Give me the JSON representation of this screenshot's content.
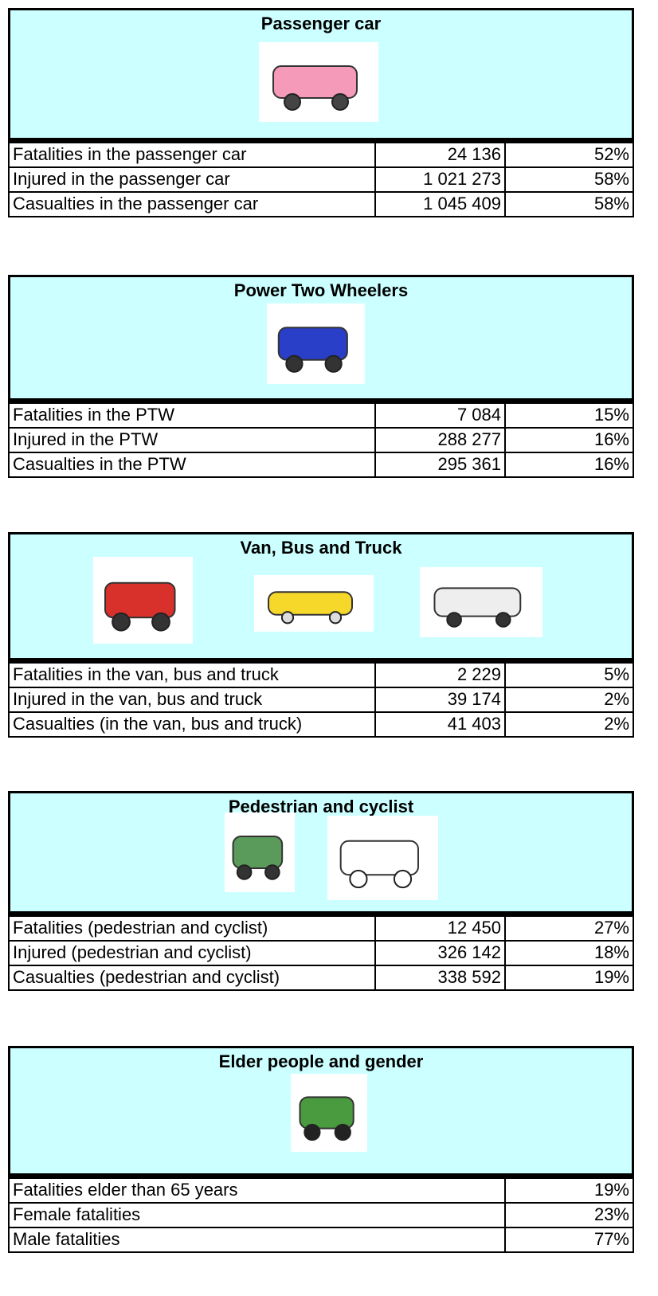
{
  "sections": [
    {
      "title": "Passenger car",
      "rows": [
        [
          "Fatalities in the passenger car",
          "24 136",
          "52%"
        ],
        [
          "Injured in the passenger car",
          "1 021 273",
          "58%"
        ],
        [
          "Casualties in the passenger car",
          "1 045 409",
          "58%"
        ]
      ]
    },
    {
      "title": "Power Two Wheelers",
      "rows": [
        [
          "Fatalities in the PTW",
          "7 084",
          "15%"
        ],
        [
          "Injured in the PTW",
          "288 277",
          "16%"
        ],
        [
          "Casualties in the PTW",
          "295 361",
          "16%"
        ]
      ]
    },
    {
      "title": "Van, Bus and Truck",
      "rows": [
        [
          "Fatalities in the van, bus and truck",
          "2 229",
          "5%"
        ],
        [
          "Injured in the van, bus and truck",
          "39 174",
          "2%"
        ],
        [
          "Casualties (in the van, bus and truck)",
          "41 403",
          "2%"
        ]
      ]
    },
    {
      "title": "Pedestrian and cyclist",
      "rows": [
        [
          "Fatalities (pedestrian and cyclist)",
          "12 450",
          "27%"
        ],
        [
          "Injured (pedestrian and cyclist)",
          "326 142",
          "18%"
        ],
        [
          "Casualties (pedestrian and cyclist)",
          "338 592",
          "19%"
        ]
      ]
    },
    {
      "title": "Elder people and gender",
      "rows": [
        [
          "Fatalities elder than 65 years",
          "19%"
        ],
        [
          "Female fatalities",
          "23%"
        ],
        [
          "Male fatalities",
          "77%"
        ]
      ]
    }
  ]
}
